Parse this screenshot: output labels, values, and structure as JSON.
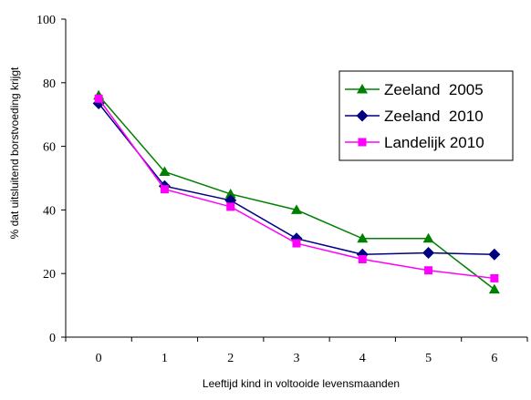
{
  "chart_data": {
    "type": "line",
    "x": [
      0,
      1,
      2,
      3,
      4,
      5,
      6
    ],
    "xlabel": "Leeftijd kind in voltooide levensmaanden",
    "ylabel": "% dat uitsluitend borstvoeding krijgt",
    "ylim": [
      0,
      100
    ],
    "xlim": [
      -0.5,
      6.5
    ],
    "y_ticks": [
      0,
      20,
      40,
      60,
      80,
      100
    ],
    "x_ticks": [
      0,
      1,
      2,
      3,
      4,
      5,
      6
    ],
    "grid": false,
    "legend_position": "right",
    "series": [
      {
        "name": "Zeeland  2005",
        "color": "#008000",
        "marker": "triangle",
        "values": [
          76,
          52,
          45,
          40,
          31,
          31,
          15
        ]
      },
      {
        "name": "Zeeland  2010",
        "color": "#000080",
        "marker": "diamond",
        "values": [
          73.5,
          47.5,
          43,
          31,
          26,
          26.5,
          26
        ]
      },
      {
        "name": "Landelijk 2010",
        "color": "#ff00ff",
        "marker": "square",
        "values": [
          75,
          46.5,
          41,
          29.5,
          24.5,
          21,
          18.5
        ]
      }
    ]
  }
}
